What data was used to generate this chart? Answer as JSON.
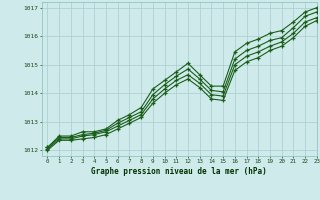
{
  "title": "Graphe pression niveau de la mer (hPa)",
  "bg_color": "#ceeaea",
  "grid_color": "#aacccc",
  "line_color": "#1a5e1a",
  "xlim": [
    -0.5,
    23
  ],
  "ylim": [
    1011.8,
    1017.2
  ],
  "yticks": [
    1012,
    1013,
    1014,
    1015,
    1016,
    1017
  ],
  "xtick_labels": [
    "0",
    "1",
    "2",
    "3",
    "4",
    "5",
    "6",
    "7",
    "8",
    "9",
    "10",
    "11",
    "12",
    "13",
    "14",
    "15",
    "16",
    "17",
    "18",
    "19",
    "20",
    "21",
    "22",
    "23"
  ],
  "series1": [
    1012.1,
    1012.5,
    1012.5,
    1012.65,
    1012.65,
    1012.75,
    1013.05,
    1013.25,
    1013.5,
    1014.15,
    1014.45,
    1014.75,
    1015.05,
    1014.65,
    1014.25,
    1014.25,
    1015.45,
    1015.75,
    1015.9,
    1016.1,
    1016.2,
    1016.5,
    1016.85,
    1017.0
  ],
  "series2": [
    1012.1,
    1012.45,
    1012.45,
    1012.55,
    1012.6,
    1012.7,
    1012.95,
    1013.15,
    1013.35,
    1013.95,
    1014.3,
    1014.6,
    1014.85,
    1014.5,
    1014.1,
    1014.05,
    1015.2,
    1015.5,
    1015.65,
    1015.85,
    1015.95,
    1016.3,
    1016.7,
    1016.85
  ],
  "series3": [
    1012.05,
    1012.4,
    1012.4,
    1012.5,
    1012.55,
    1012.65,
    1012.85,
    1013.05,
    1013.25,
    1013.8,
    1014.15,
    1014.45,
    1014.65,
    1014.35,
    1013.95,
    1013.9,
    1015.0,
    1015.3,
    1015.45,
    1015.65,
    1015.8,
    1016.1,
    1016.5,
    1016.65
  ],
  "series4": [
    1012.0,
    1012.35,
    1012.35,
    1012.4,
    1012.45,
    1012.55,
    1012.75,
    1012.95,
    1013.15,
    1013.65,
    1014.0,
    1014.3,
    1014.5,
    1014.2,
    1013.8,
    1013.75,
    1014.8,
    1015.1,
    1015.25,
    1015.5,
    1015.65,
    1015.95,
    1016.35,
    1016.55
  ]
}
